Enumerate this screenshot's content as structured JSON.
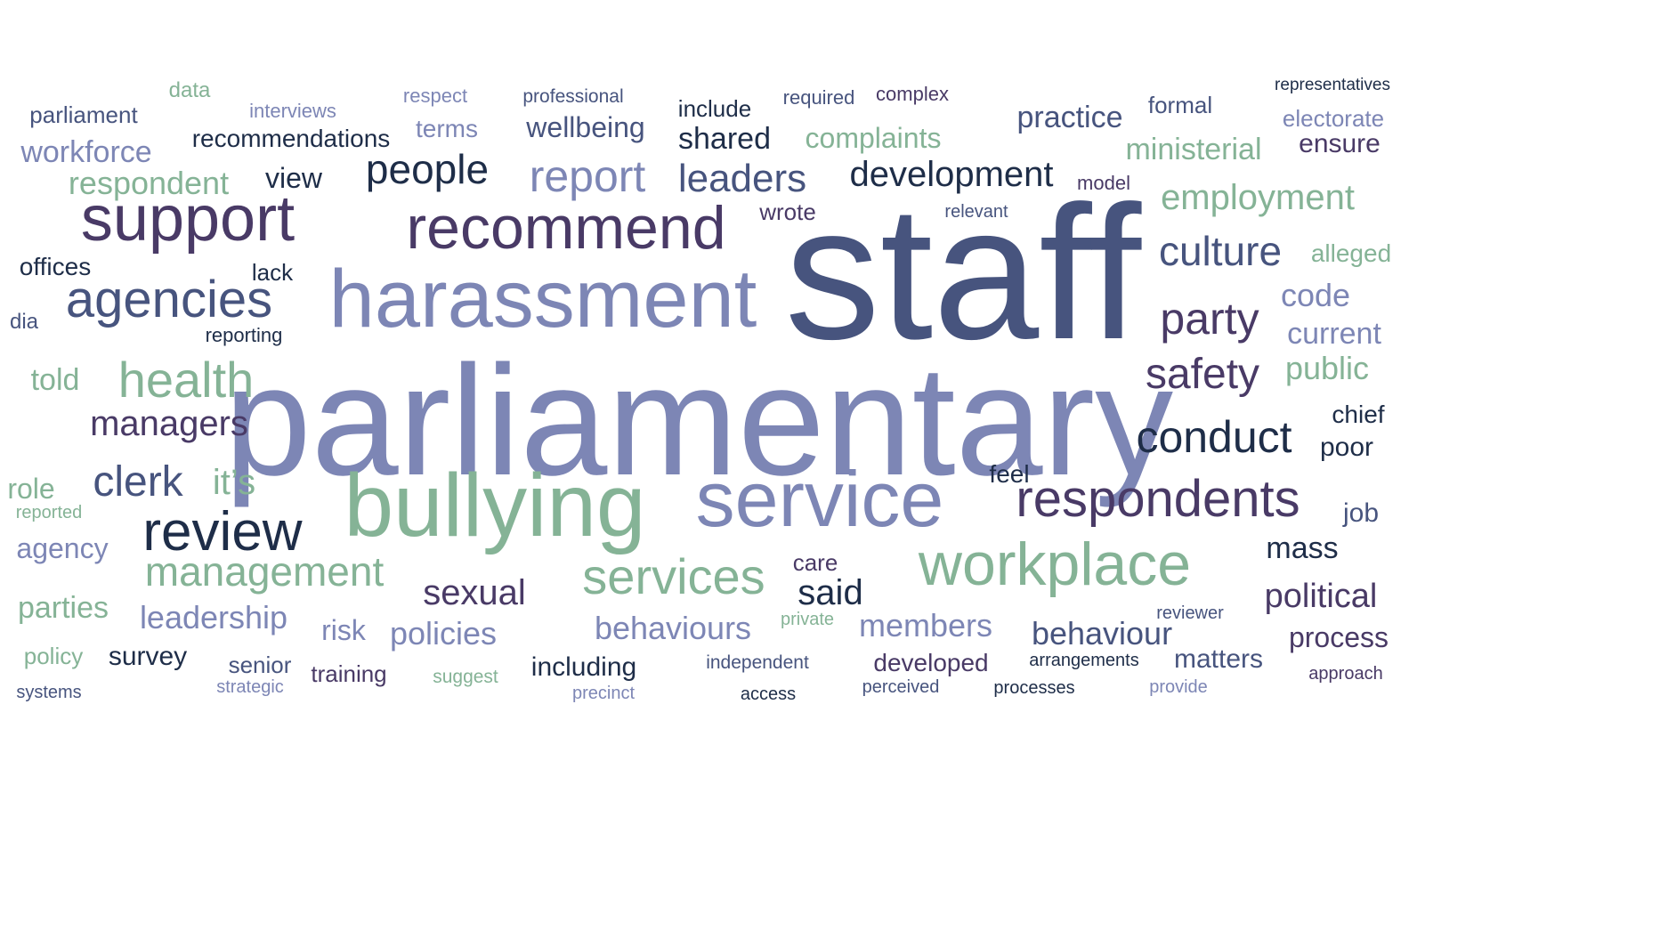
{
  "word_cloud": {
    "palette": {
      "sage": "#85b396",
      "periwinkle": "#7d86b5",
      "navy": "#47547e",
      "plum": "#493a66",
      "dark": "#1e2d48"
    },
    "words": [
      {
        "text": "parliamentary",
        "color": "periwinkle"
      },
      {
        "text": "staff",
        "color": "navy"
      },
      {
        "text": "harassment",
        "color": "periwinkle"
      },
      {
        "text": "bullying",
        "color": "sage"
      },
      {
        "text": "service",
        "color": "periwinkle"
      },
      {
        "text": "support",
        "color": "plum"
      },
      {
        "text": "recommend",
        "color": "plum"
      },
      {
        "text": "workplace",
        "color": "sage"
      },
      {
        "text": "respondents",
        "color": "plum"
      },
      {
        "text": "review",
        "color": "dark"
      },
      {
        "text": "agencies",
        "color": "navy"
      },
      {
        "text": "services",
        "color": "sage"
      },
      {
        "text": "health",
        "color": "sage"
      },
      {
        "text": "conduct",
        "color": "dark"
      },
      {
        "text": "party",
        "color": "plum"
      },
      {
        "text": "culture",
        "color": "navy"
      },
      {
        "text": "people",
        "color": "dark"
      },
      {
        "text": "report",
        "color": "periwinkle"
      },
      {
        "text": "leaders",
        "color": "navy"
      },
      {
        "text": "management",
        "color": "sage"
      },
      {
        "text": "safety",
        "color": "plum"
      },
      {
        "text": "clerk",
        "color": "navy"
      },
      {
        "text": "development",
        "color": "dark"
      },
      {
        "text": "employment",
        "color": "sage"
      },
      {
        "text": "managers",
        "color": "plum"
      },
      {
        "text": "sexual",
        "color": "plum"
      },
      {
        "text": "said",
        "color": "dark"
      },
      {
        "text": "political",
        "color": "plum"
      },
      {
        "text": "respondent",
        "color": "sage"
      },
      {
        "text": "workforce",
        "color": "periwinkle"
      },
      {
        "text": "leadership",
        "color": "periwinkle"
      },
      {
        "text": "members",
        "color": "periwinkle"
      },
      {
        "text": "behaviours",
        "color": "periwinkle"
      },
      {
        "text": "behaviour",
        "color": "navy"
      },
      {
        "text": "shared",
        "color": "dark"
      },
      {
        "text": "practice",
        "color": "navy"
      },
      {
        "text": "ministerial",
        "color": "sage"
      },
      {
        "text": "complaints",
        "color": "sage"
      },
      {
        "text": "policies",
        "color": "periwinkle"
      },
      {
        "text": "it’s",
        "color": "sage"
      },
      {
        "text": "code",
        "color": "periwinkle"
      },
      {
        "text": "current",
        "color": "periwinkle"
      },
      {
        "text": "public",
        "color": "sage"
      },
      {
        "text": "process",
        "color": "plum"
      },
      {
        "text": "matters",
        "color": "navy"
      },
      {
        "text": "parties",
        "color": "sage"
      },
      {
        "text": "mass",
        "color": "dark"
      },
      {
        "text": "wellbeing",
        "color": "navy"
      },
      {
        "text": "recommendations",
        "color": "dark"
      },
      {
        "text": "agency",
        "color": "periwinkle"
      },
      {
        "text": "told",
        "color": "sage"
      },
      {
        "text": "view",
        "color": "dark"
      },
      {
        "text": "survey",
        "color": "dark"
      },
      {
        "text": "including",
        "color": "dark"
      },
      {
        "text": "risk",
        "color": "periwinkle"
      },
      {
        "text": "role",
        "color": "sage"
      },
      {
        "text": "offices",
        "color": "dark"
      },
      {
        "text": "terms",
        "color": "periwinkle"
      },
      {
        "text": "poor",
        "color": "dark"
      },
      {
        "text": "chief",
        "color": "dark"
      },
      {
        "text": "job",
        "color": "navy"
      },
      {
        "text": "ensure",
        "color": "plum"
      },
      {
        "text": "electorate",
        "color": "periwinkle"
      },
      {
        "text": "alleged",
        "color": "sage"
      },
      {
        "text": "developed",
        "color": "plum"
      },
      {
        "text": "care",
        "color": "plum"
      },
      {
        "text": "feel",
        "color": "dark"
      },
      {
        "text": "parliament",
        "color": "navy"
      },
      {
        "text": "lack",
        "color": "dark"
      },
      {
        "text": "wrote",
        "color": "plum"
      },
      {
        "text": "include",
        "color": "dark"
      },
      {
        "text": "formal",
        "color": "navy"
      },
      {
        "text": "training",
        "color": "plum"
      },
      {
        "text": "senior",
        "color": "navy"
      },
      {
        "text": "policy",
        "color": "sage"
      },
      {
        "text": "interviews",
        "color": "periwinkle"
      },
      {
        "text": "reporting",
        "color": "dark"
      },
      {
        "text": "data",
        "color": "sage"
      },
      {
        "text": "respect",
        "color": "periwinkle"
      },
      {
        "text": "professional",
        "color": "navy"
      },
      {
        "text": "required",
        "color": "navy"
      },
      {
        "text": "complex",
        "color": "plum"
      },
      {
        "text": "representatives",
        "color": "dark"
      },
      {
        "text": "model",
        "color": "plum"
      },
      {
        "text": "relevant",
        "color": "navy"
      },
      {
        "text": "dia",
        "color": "navy"
      },
      {
        "text": "reported",
        "color": "sage"
      },
      {
        "text": "systems",
        "color": "navy"
      },
      {
        "text": "strategic",
        "color": "periwinkle"
      },
      {
        "text": "suggest",
        "color": "sage"
      },
      {
        "text": "precinct",
        "color": "periwinkle"
      },
      {
        "text": "independent",
        "color": "navy"
      },
      {
        "text": "access",
        "color": "dark"
      },
      {
        "text": "perceived",
        "color": "navy"
      },
      {
        "text": "processes",
        "color": "dark"
      },
      {
        "text": "arrangements",
        "color": "dark"
      },
      {
        "text": "provide",
        "color": "periwinkle"
      },
      {
        "text": "reviewer",
        "color": "navy"
      },
      {
        "text": "approach",
        "color": "plum"
      },
      {
        "text": "private",
        "color": "sage"
      }
    ]
  }
}
